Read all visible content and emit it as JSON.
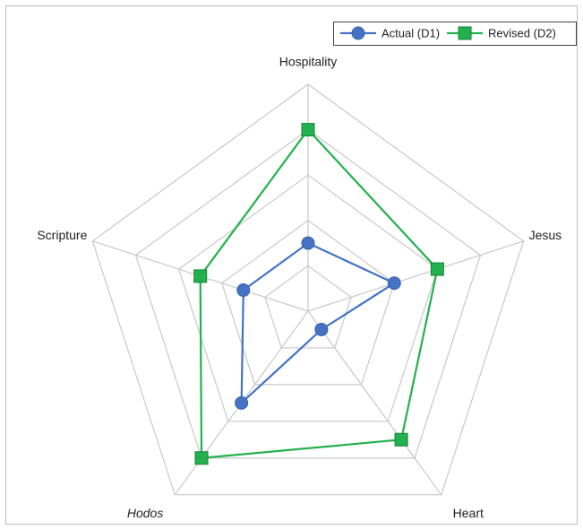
{
  "chart_data": {
    "type": "radar",
    "categories": [
      "Hospitality",
      "Jesus",
      "Heart",
      "Hodos",
      "Scripture"
    ],
    "series": [
      {
        "name": "Actual (D1)",
        "color": "#4472c4",
        "values": [
          1.5,
          2,
          0.5,
          2.5,
          1.5
        ]
      },
      {
        "name": "Revised (D2)",
        "color": "#22b14c",
        "values": [
          4,
          3,
          3.5,
          4,
          2.5
        ]
      }
    ],
    "rlim": [
      0,
      5
    ],
    "rticks": [
      1,
      2,
      3,
      4,
      5
    ],
    "grid": true,
    "legend": "top-right"
  }
}
